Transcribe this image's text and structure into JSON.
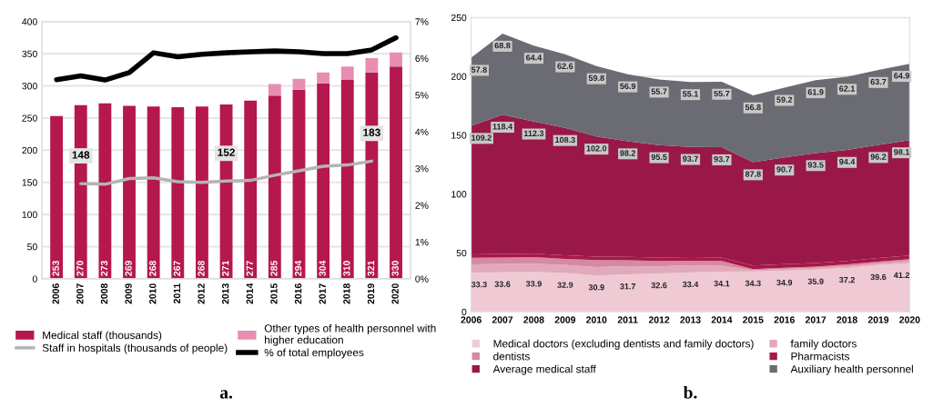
{
  "chart_data": [
    {
      "type": "bar",
      "stacked": true,
      "categories": [
        "2006",
        "2007",
        "2008",
        "2009",
        "2010",
        "2011",
        "2012",
        "2013",
        "2014",
        "2015",
        "2016",
        "2017",
        "2018",
        "2019",
        "2020"
      ],
      "series": [
        {
          "name": "Medical staff (thousands)",
          "color": "#b5174f",
          "values": [
            253,
            270,
            273,
            269,
            268,
            267,
            268,
            271,
            277,
            285,
            294,
            304,
            310,
            321,
            330
          ],
          "value_labels": [
            "253",
            "270",
            "273",
            "269",
            "268",
            "267",
            "268",
            "271",
            "277",
            "285",
            "294",
            "304",
            "310",
            "321",
            "330"
          ]
        },
        {
          "name": "Other types of health personnel with\nhigher education",
          "color": "#e88db2",
          "values": [
            null,
            null,
            null,
            null,
            null,
            null,
            null,
            null,
            null,
            18,
            17,
            17,
            20,
            22,
            22
          ]
        },
        {
          "type": "line",
          "name": "Staff in hospitals (thousands of people)",
          "color": "#b4b4b4",
          "values": [
            null,
            148,
            147,
            156,
            157,
            151,
            150,
            152,
            153,
            161,
            168,
            175,
            177,
            183,
            null
          ],
          "value_labels": [
            null,
            "148",
            null,
            null,
            null,
            null,
            null,
            "152",
            null,
            null,
            null,
            null,
            null,
            "183",
            null
          ]
        },
        {
          "type": "line",
          "axis": "y2",
          "name": "% of total employees",
          "color": "#000000",
          "values": [
            5.42,
            5.52,
            5.41,
            5.61,
            6.15,
            6.04,
            6.11,
            6.15,
            6.18,
            6.2,
            6.18,
            6.13,
            6.13,
            6.23,
            6.56
          ]
        }
      ],
      "ylim": [
        0,
        400
      ],
      "yticks": [
        0,
        50,
        100,
        150,
        200,
        250,
        300,
        350,
        400
      ],
      "y2lim": [
        0,
        7
      ],
      "y2ticks": [
        {
          "value": 0,
          "label": "0%"
        },
        {
          "value": 1,
          "label": "1%"
        },
        {
          "value": 2,
          "label": "2%"
        },
        {
          "value": 3,
          "label": "3%"
        },
        {
          "value": 4,
          "label": "4%"
        },
        {
          "value": 5,
          "label": "5%"
        },
        {
          "value": 6,
          "label": "6%"
        },
        {
          "value": 7,
          "label": "7%"
        }
      ],
      "grid": "y",
      "legend": "bottom",
      "annotations": [
        "a."
      ]
    },
    {
      "type": "area",
      "stacked": true,
      "categories": [
        "2006",
        "2007",
        "2008",
        "2009",
        "2010",
        "2011",
        "2012",
        "2013",
        "2014",
        "2015",
        "2016",
        "2017",
        "2018",
        "2019",
        "2020"
      ],
      "series": [
        {
          "name": "Medical doctors (excluding dentists and family doctors)",
          "color": "#efcad5",
          "values": [
            33.3,
            33.6,
            33.9,
            32.9,
            30.9,
            31.7,
            32.6,
            33.4,
            34.1,
            34.3,
            34.9,
            35.9,
            37.2,
            39.6,
            41.2
          ],
          "value_labels": [
            "33.3",
            "33.6",
            "33.9",
            "32.9",
            "30.9",
            "31.7",
            "32.6",
            "33.4",
            "34.1",
            "34.3",
            "34.9",
            "35.9",
            "37.2",
            "39.6",
            "41.2"
          ]
        },
        {
          "name": "family doctors",
          "color": "#e2a9ba",
          "values": [
            7,
            7,
            7,
            7,
            7,
            7,
            6,
            6,
            5,
            1,
            1.5,
            1.5,
            1.5,
            1.5,
            2
          ]
        },
        {
          "name": "dentists",
          "color": "#d48aa1",
          "values": [
            5.5,
            5.5,
            5.5,
            5,
            6,
            5,
            4.5,
            4,
            4,
            1,
            1,
            1,
            1.5,
            1.5,
            1.5
          ]
        },
        {
          "name": "Pharmacists",
          "color": "#a8184a",
          "values": [
            3,
            3,
            3,
            3,
            3,
            3,
            3,
            3,
            3,
            3,
            3,
            3,
            3,
            3,
            3
          ]
        },
        {
          "name": "Average medical staff",
          "color": "#991848",
          "values": [
            109.2,
            118.4,
            112.3,
            108.3,
            102.0,
            98.2,
            95.5,
            93.7,
            93.7,
            87.8,
            90.7,
            93.5,
            94.4,
            96.2,
            98.1
          ],
          "value_labels": [
            "109.2",
            "118.4",
            "112.3",
            "108.3",
            "102.0",
            "98.2",
            "95.5",
            "93.7",
            "93.7",
            "87.8",
            "90.7",
            "93.5",
            "94.4",
            "96.2",
            "98.1"
          ]
        },
        {
          "name": "Auxiliary health personnel",
          "color": "#6b6b73",
          "values": [
            57.8,
            68.8,
            64.4,
            62.6,
            59.8,
            56.9,
            55.7,
            55.1,
            55.7,
            56.8,
            59.2,
            61.9,
            62.1,
            63.7,
            64.9
          ],
          "value_labels": [
            "57.8",
            "68.8",
            "64.4",
            "62.6",
            "59.8",
            "56.9",
            "55.7",
            "55.1",
            "55.7",
            "56.8",
            "59.2",
            "61.9",
            "62.1",
            "63.7",
            "64.9"
          ]
        }
      ],
      "ylim": [
        0,
        250
      ],
      "yticks": [
        0,
        50,
        100,
        150,
        200,
        250
      ],
      "grid": "y",
      "legend": "bottom",
      "annotations": [
        "b."
      ]
    }
  ]
}
